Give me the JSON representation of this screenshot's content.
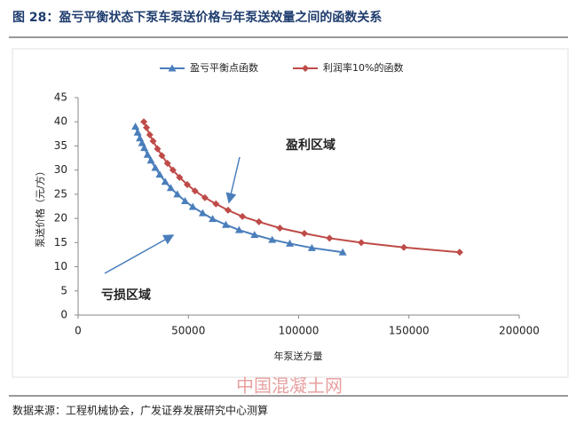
{
  "chart_data": {
    "type": "line",
    "title": "图 28：盈亏平衡状态下泵车泵送价格与年泵送效量之间的函数关系",
    "xlabel": "年泵送方量",
    "ylabel": "泵送价格（元/方）",
    "xlim": [
      0,
      200000
    ],
    "xticks": [
      0,
      50000,
      100000,
      150000,
      200000
    ],
    "ylim": [
      0,
      45
    ],
    "yticks": [
      0,
      5,
      10,
      15,
      20,
      25,
      30,
      35,
      40,
      45
    ],
    "series": [
      {
        "name": "盈亏平衡点函数",
        "color": "#4a7ebb",
        "x": [
          26000,
          27000,
          28000,
          29000,
          30000,
          31500,
          33000,
          35000,
          37000,
          39500,
          42000,
          45000,
          48500,
          52000,
          56500,
          61000,
          67000,
          73000,
          80000,
          88000,
          96000,
          106000,
          120000
        ],
        "values": [
          39.0,
          37.8,
          36.6,
          35.6,
          34.6,
          33.2,
          32.0,
          30.5,
          29.1,
          27.6,
          26.3,
          25.0,
          23.6,
          22.4,
          21.1,
          19.9,
          18.7,
          17.6,
          16.6,
          15.6,
          14.8,
          13.9,
          13.0
        ]
      },
      {
        "name": "利润率10%的函数",
        "color": "#be4b48",
        "x": [
          29800,
          31000,
          32500,
          34000,
          36000,
          38000,
          40500,
          43000,
          46000,
          49500,
          53000,
          57500,
          62500,
          68000,
          74500,
          82000,
          91500,
          102600,
          114000,
          128400,
          147700,
          173000
        ],
        "values": [
          40.0,
          38.8,
          37.3,
          36.0,
          34.4,
          33.0,
          31.4,
          30.0,
          28.5,
          27.0,
          25.7,
          24.3,
          23.0,
          21.7,
          20.4,
          19.3,
          18.0,
          16.9,
          15.9,
          15.0,
          14.0,
          13.0
        ]
      }
    ],
    "annotations": [
      "盈利区域",
      "亏损区域"
    ],
    "source": "数据来源：工程机械协会，广发证券发展研究中心测算",
    "watermark": "中国混凝土网"
  }
}
